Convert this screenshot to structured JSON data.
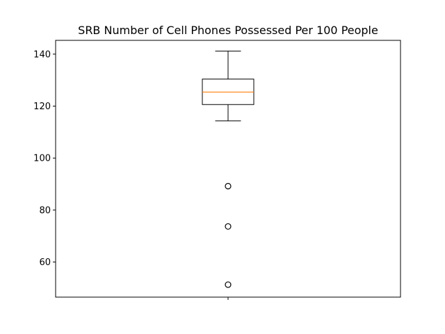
{
  "chart_data": {
    "type": "box",
    "title": "SRB Number of Cell Phones Possessed Per 100 People",
    "xlabel": "",
    "ylabel": "",
    "xticks": [
      ""
    ],
    "ylim": [
      46.5,
      145.3
    ],
    "yticks": [
      60,
      80,
      100,
      120,
      140
    ],
    "grid": false,
    "legend": "none",
    "box": {
      "whisker_low": 114.3,
      "q1": 120.6,
      "median": 125.4,
      "q3": 130.4,
      "whisker_high": 141.2,
      "outliers": [
        89.2,
        73.7,
        51.3
      ]
    },
    "colors": {
      "box": "#000000",
      "median": "#ff7f0e",
      "outlier": "#000000"
    }
  }
}
